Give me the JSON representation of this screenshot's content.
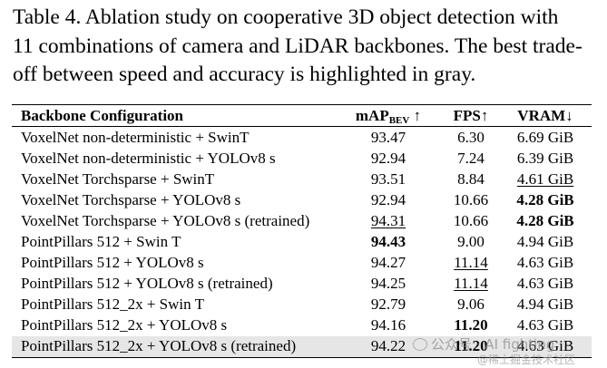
{
  "caption": {
    "line1": "Table 4.  Ablation study on cooperative 3D object detection with",
    "line2": "11 combinations of camera and LiDAR backbones. The best trade-",
    "line3": "off between speed and accuracy is highlighted in gray."
  },
  "table": {
    "headers": {
      "config": "Backbone Configuration",
      "map": "mAP",
      "map_sub": "BEV",
      "map_arrow": " ↑",
      "fps": "FPS↑",
      "vram": "VRAM↓"
    },
    "rows": [
      {
        "config": "VoxelNet non-deterministic + SwinT",
        "map": "93.47",
        "fps": "6.30",
        "vram": "6.69 GiB"
      },
      {
        "config": "VoxelNet non-deterministic + YOLOv8 s",
        "map": "92.94",
        "fps": "7.24",
        "vram": "6.39 GiB"
      },
      {
        "config": "VoxelNet Torchsparse + SwinT",
        "map": "93.51",
        "fps": "8.84",
        "vram": "4.61 GiB"
      },
      {
        "config": "VoxelNet Torchsparse + YOLOv8 s",
        "map": "92.94",
        "fps": "10.66",
        "vram": "4.28 GiB"
      },
      {
        "config": "VoxelNet Torchsparse + YOLOv8 s (retrained)",
        "map": "94.31",
        "fps": "10.66",
        "vram": "4.28 GiB"
      },
      {
        "config": "PointPillars 512 + Swin T",
        "map": "94.43",
        "fps": "9.00",
        "vram": "4.94 GiB"
      },
      {
        "config": "PointPillars 512 + YOLOv8 s",
        "map": "94.27",
        "fps": "11.14",
        "vram": "4.63 GiB"
      },
      {
        "config": "PointPillars 512 + YOLOv8 s (retrained)",
        "map": "94.25",
        "fps": "11.14",
        "vram": "4.63 GiB"
      },
      {
        "config": "PointPillars 512_2x + Swin T",
        "map": "92.79",
        "fps": "9.06",
        "vram": "4.94 GiB"
      },
      {
        "config": "PointPillars 512_2x + YOLOv8 s",
        "map": "94.16",
        "fps": "11.20",
        "vram": "4.63 GiB"
      },
      {
        "config": "PointPillars 512_2x + YOLOv8 s (retrained)",
        "map": "94.22",
        "fps": "11.20",
        "vram": "4.63 GiB"
      }
    ]
  },
  "watermark": {
    "main": "公众号 · AI fighting",
    "sub": "@稀土掘金技术社区"
  }
}
